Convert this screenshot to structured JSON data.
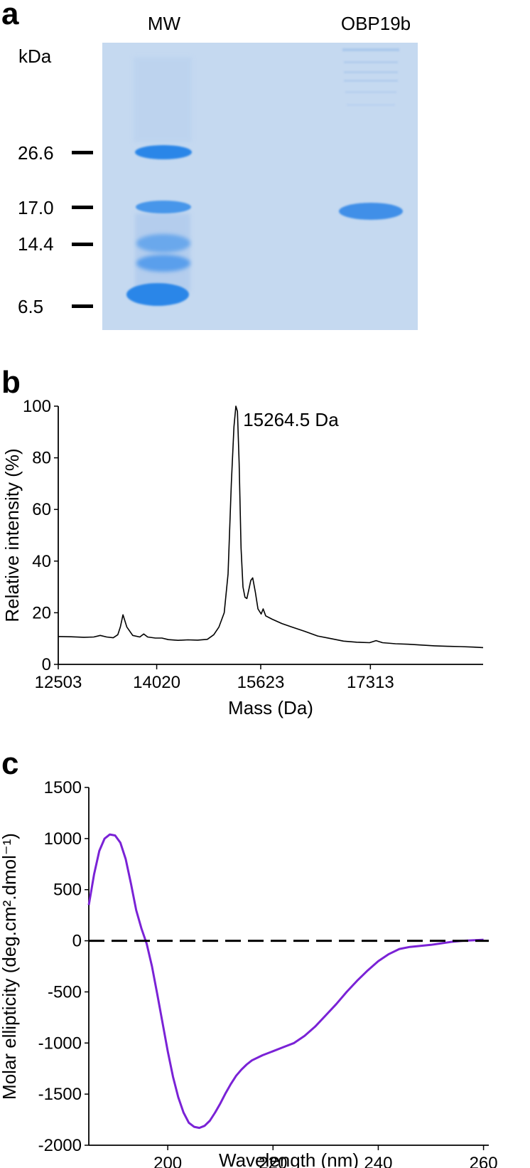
{
  "panels": {
    "a": "a",
    "b": "b",
    "c": "c"
  },
  "gel": {
    "lanes": [
      "MW",
      "OBP19b"
    ],
    "unit": "kDa",
    "markers": [
      "26.6",
      "17.0",
      "14.4",
      "6.5"
    ],
    "colors": {
      "background": "#c9dcf2",
      "band": "#2b86e8"
    }
  },
  "chart_data": [
    {
      "type": "line",
      "panel": "b",
      "xlabel": "Mass (Da)",
      "ylabel": "Relative intensity (%)",
      "xticks": [
        12503,
        14020,
        15623,
        17313
      ],
      "yticks": [
        0,
        20,
        40,
        60,
        80,
        100
      ],
      "xlim": [
        12503,
        19050
      ],
      "ylim": [
        0,
        100
      ],
      "annotation": {
        "text": "15264.5 Da",
        "x": 15264.5,
        "y": 100
      },
      "series": [
        {
          "color": "#000000",
          "x": [
            12503,
            12700,
            12900,
            13050,
            13150,
            13250,
            13350,
            13420,
            13460,
            13500,
            13560,
            13650,
            13760,
            13820,
            13880,
            14000,
            14100,
            14200,
            14350,
            14500,
            14650,
            14800,
            14900,
            14980,
            15060,
            15120,
            15170,
            15210,
            15240,
            15264.5,
            15290,
            15320,
            15350,
            15380,
            15410,
            15440,
            15470,
            15500,
            15540,
            15580,
            15630,
            15660,
            15700,
            15800,
            15950,
            16100,
            16300,
            16500,
            16700,
            16900,
            17100,
            17300,
            17400,
            17500,
            17700,
            17900,
            18100,
            18300,
            18500,
            18700,
            18900,
            19050
          ],
          "y": [
            10.8,
            10.7,
            10.5,
            10.6,
            11.2,
            10.6,
            10.3,
            11.5,
            14.5,
            19.2,
            14.5,
            11.2,
            10.6,
            11.8,
            10.6,
            10.2,
            10.2,
            9.6,
            9.3,
            9.5,
            9.4,
            9.7,
            11.5,
            14.5,
            20.0,
            35.0,
            70.0,
            92.0,
            100.0,
            98.0,
            78.0,
            45.0,
            30.0,
            26.0,
            25.5,
            29.0,
            32.5,
            33.5,
            28.0,
            21.5,
            19.5,
            21.5,
            18.8,
            17.5,
            15.8,
            14.5,
            12.8,
            11.0,
            10.0,
            9.0,
            8.6,
            8.4,
            9.2,
            8.4,
            8.0,
            7.8,
            7.5,
            7.2,
            7.0,
            6.9,
            6.7,
            6.5
          ]
        }
      ]
    },
    {
      "type": "line",
      "panel": "c",
      "xlabel": "Wavelength (nm)",
      "ylabel": "Molar ellipticity (deg.cm².dmol⁻¹)",
      "xticks": [
        200,
        220,
        240,
        260
      ],
      "yticks": [
        -2000,
        -1500,
        -1000,
        -500,
        0,
        500,
        1000,
        1500
      ],
      "xlim": [
        185,
        261
      ],
      "ylim": [
        -2000,
        1500
      ],
      "series": [
        {
          "color": "#7a22d6",
          "x": [
            185,
            186,
            187,
            188,
            189,
            190,
            191,
            192,
            193,
            194,
            195,
            196,
            197,
            198,
            199,
            200,
            201,
            202,
            203,
            204,
            205,
            206,
            207,
            208,
            209,
            210,
            211,
            212,
            213,
            214,
            215,
            216,
            218,
            220,
            222,
            224,
            226,
            228,
            230,
            232,
            234,
            236,
            238,
            240,
            242,
            244,
            246,
            248,
            250,
            252,
            254,
            256,
            258,
            260
          ],
          "y": [
            350,
            650,
            880,
            1000,
            1040,
            1030,
            960,
            800,
            560,
            300,
            120,
            -30,
            -250,
            -520,
            -800,
            -1080,
            -1330,
            -1530,
            -1680,
            -1780,
            -1820,
            -1830,
            -1810,
            -1760,
            -1680,
            -1590,
            -1490,
            -1400,
            -1320,
            -1260,
            -1210,
            -1170,
            -1120,
            -1080,
            -1040,
            -1000,
            -930,
            -840,
            -730,
            -620,
            -500,
            -390,
            -290,
            -200,
            -130,
            -80,
            -60,
            -50,
            -40,
            -25,
            -10,
            0,
            5,
            10
          ]
        },
        {
          "color": "#000000",
          "dash": true,
          "x": [
            185,
            261
          ],
          "y": [
            0,
            0
          ]
        }
      ]
    }
  ]
}
